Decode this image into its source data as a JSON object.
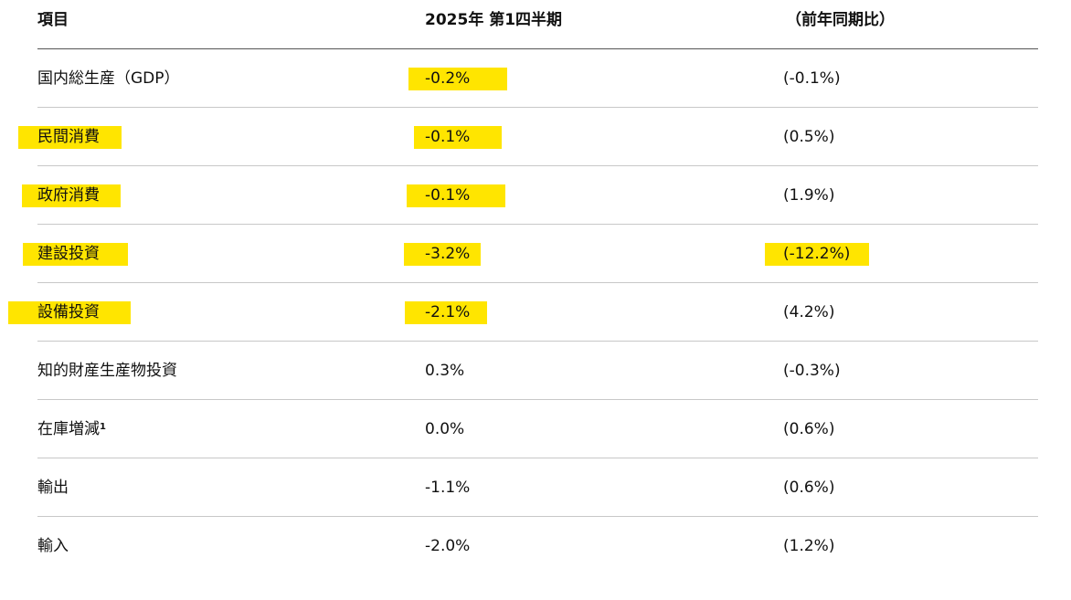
{
  "colors": {
    "highlight": "#ffe500",
    "text": "#111111",
    "header_rule": "#555555",
    "row_rule": "#c8c8c8"
  },
  "header": {
    "item": "項目",
    "quarter": "2025年 第1四半期",
    "yoy": "（前年同期比）"
  },
  "rows": [
    {
      "label": "国内総生産（GDP）",
      "label_sup": "",
      "value": "-0.2%",
      "yoy": "(-0.1%)",
      "label_highlighted": false,
      "value_highlighted": true,
      "yoy_highlighted": false
    },
    {
      "label": "民間消費",
      "label_sup": "",
      "value": "-0.1%",
      "yoy": "(0.5%)",
      "label_highlighted": true,
      "value_highlighted": true,
      "yoy_highlighted": false
    },
    {
      "label": "政府消費",
      "label_sup": "",
      "value": "-0.1%",
      "yoy": "(1.9%)",
      "label_highlighted": true,
      "value_highlighted": true,
      "yoy_highlighted": false
    },
    {
      "label": "建設投資",
      "label_sup": "",
      "value": "-3.2%",
      "yoy": "(-12.2%)",
      "label_highlighted": true,
      "value_highlighted": true,
      "yoy_highlighted": true
    },
    {
      "label": "設備投資",
      "label_sup": "",
      "value": "-2.1%",
      "yoy": "(4.2%)",
      "label_highlighted": true,
      "value_highlighted": true,
      "yoy_highlighted": false
    },
    {
      "label": "知的財産生産物投資",
      "label_sup": "",
      "value": "0.3%",
      "yoy": "(-0.3%)",
      "label_highlighted": false,
      "value_highlighted": false,
      "yoy_highlighted": false
    },
    {
      "label": "在庫増減",
      "label_sup": "1",
      "value": "0.0%",
      "yoy": "(0.6%)",
      "label_highlighted": false,
      "value_highlighted": false,
      "yoy_highlighted": false
    },
    {
      "label": "輸出",
      "label_sup": "",
      "value": "-1.1%",
      "yoy": "(0.6%)",
      "label_highlighted": false,
      "value_highlighted": false,
      "yoy_highlighted": false
    },
    {
      "label": "輸入",
      "label_sup": "",
      "value": "-2.0%",
      "yoy": "(1.2%)",
      "label_highlighted": false,
      "value_highlighted": false,
      "yoy_highlighted": false
    }
  ]
}
